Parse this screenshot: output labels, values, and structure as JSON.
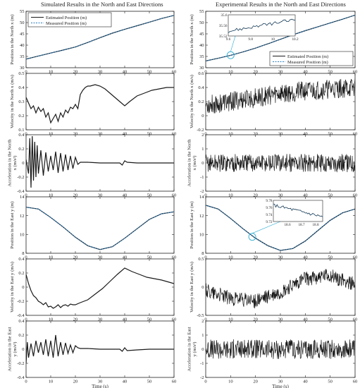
{
  "figure": {
    "left_title": "Simulated Results in the North and East Directions",
    "right_title": "Experimental Results in the North and East Directions",
    "xlabel": "Time (s)",
    "xlim": [
      0,
      60
    ],
    "xticks": [
      0,
      10,
      20,
      30,
      40,
      50,
      60
    ],
    "colors": {
      "estimated": "#1a1a1a",
      "measured": "#2a7fc0",
      "zoom_circle": "#2aaad0",
      "axes": "#222222"
    }
  },
  "chart_data": [
    {
      "id": "sim-north-position",
      "type": "line",
      "ylabel": "Position in the North x (m)",
      "ylim": [
        30,
        55
      ],
      "yticks": [
        30,
        35,
        40,
        45,
        50,
        55
      ],
      "legend": {
        "entries": [
          "Estimated Position (m)",
          "Measured Position (m)"
        ],
        "placement": "top-left"
      },
      "series": [
        {
          "name": "Estimated Position (m)",
          "style": "solid",
          "x": [
            0,
            5,
            10,
            15,
            20,
            25,
            30,
            35,
            40,
            45,
            50,
            55,
            60
          ],
          "y": [
            33.8,
            35.2,
            36.5,
            37.8,
            39.2,
            41.2,
            43.3,
            45.3,
            47.0,
            48.6,
            50.2,
            51.8,
            53.2
          ]
        },
        {
          "name": "Measured Position (m)",
          "style": "dotted",
          "x": [
            0,
            5,
            10,
            15,
            20,
            25,
            30,
            35,
            40,
            45,
            50,
            55,
            60
          ],
          "y": [
            33.8,
            35.2,
            36.5,
            37.8,
            39.2,
            41.2,
            43.3,
            45.3,
            47.0,
            48.6,
            50.2,
            51.8,
            53.2
          ]
        }
      ]
    },
    {
      "id": "sim-north-velocity",
      "type": "line",
      "ylabel": "Velocity in the North x (m/s)",
      "ylim": [
        0.1,
        0.5
      ],
      "yticks": [
        0.1,
        0.2,
        0.3,
        0.4,
        0.5
      ],
      "series": [
        {
          "name": "Estimated",
          "style": "solid",
          "x": [
            0,
            1,
            2,
            3,
            4,
            5,
            6,
            7,
            8,
            9,
            10,
            11,
            12,
            13,
            14,
            15,
            16,
            17,
            18,
            19,
            20,
            21,
            22,
            23,
            24,
            25,
            26,
            28,
            30,
            32,
            34,
            36,
            38,
            40,
            42,
            45,
            48,
            51,
            54,
            57,
            60
          ],
          "y": [
            0.33,
            0.29,
            0.25,
            0.27,
            0.22,
            0.26,
            0.23,
            0.25,
            0.19,
            0.22,
            0.15,
            0.18,
            0.21,
            0.16,
            0.22,
            0.19,
            0.24,
            0.22,
            0.26,
            0.25,
            0.28,
            0.25,
            0.35,
            0.38,
            0.4,
            0.41,
            0.41,
            0.42,
            0.41,
            0.39,
            0.36,
            0.33,
            0.3,
            0.27,
            0.3,
            0.34,
            0.36,
            0.38,
            0.39,
            0.4,
            0.4
          ]
        }
      ]
    },
    {
      "id": "sim-north-acceleration",
      "type": "line",
      "ylabel": "Acceleration in the North x (m/s²)",
      "ylim": [
        -0.4,
        0.4
      ],
      "yticks": [
        -0.4,
        -0.2,
        0,
        0.2,
        0.4
      ],
      "series": [
        {
          "name": "Estimated",
          "style": "solid",
          "x": [
            0,
            1,
            1.5,
            2,
            2.5,
            3,
            3.5,
            4,
            4.5,
            5,
            6,
            7,
            8,
            9,
            10,
            11,
            12,
            13,
            14,
            15,
            16,
            17,
            18,
            19,
            20,
            21,
            22,
            25,
            30,
            35,
            38,
            39,
            40,
            41,
            45,
            50,
            55,
            60
          ],
          "y": [
            0.05,
            -0.15,
            0.35,
            -0.35,
            0.38,
            -0.25,
            0.3,
            -0.2,
            0.25,
            -0.15,
            0.18,
            -0.18,
            0.15,
            -0.12,
            0.1,
            -0.1,
            0.16,
            -0.14,
            0.14,
            -0.12,
            0.12,
            -0.1,
            0.1,
            -0.08,
            0.08,
            -0.02,
            0.01,
            0.01,
            0.0,
            0.0,
            0.0,
            -0.03,
            0.03,
            0.01,
            0.0,
            0.0,
            0.0,
            0.0
          ]
        }
      ]
    },
    {
      "id": "sim-east-position",
      "type": "line",
      "ylabel": "Position in the East y (m)",
      "ylim": [
        8,
        14
      ],
      "yticks": [
        8,
        10,
        12,
        14
      ],
      "series": [
        {
          "name": "Estimated",
          "style": "solid",
          "x": [
            0,
            5,
            10,
            15,
            20,
            25,
            30,
            35,
            40,
            45,
            50,
            55,
            60
          ],
          "y": [
            12.9,
            12.7,
            11.8,
            10.8,
            9.7,
            8.8,
            8.4,
            8.7,
            9.6,
            10.6,
            11.6,
            12.2,
            12.4
          ]
        },
        {
          "name": "Measured",
          "style": "dotted",
          "x": [
            0,
            5,
            10,
            15,
            20,
            25,
            30,
            35,
            40,
            45,
            50,
            55,
            60
          ],
          "y": [
            12.9,
            12.7,
            11.8,
            10.8,
            9.7,
            8.8,
            8.4,
            8.7,
            9.6,
            10.6,
            11.6,
            12.2,
            12.4
          ]
        }
      ]
    },
    {
      "id": "sim-east-velocity",
      "type": "line",
      "ylabel": "Velocity in the East y (m/s)",
      "ylim": [
        -0.4,
        0.4
      ],
      "yticks": [
        -0.4,
        -0.2,
        0,
        0.2,
        0.4
      ],
      "series": [
        {
          "name": "Estimated",
          "style": "solid",
          "x": [
            0,
            1,
            2,
            3,
            4,
            5,
            6,
            7,
            8,
            9,
            10,
            11,
            12,
            13,
            14,
            15,
            16,
            17,
            18,
            19,
            20,
            22,
            25,
            28,
            31,
            34,
            37,
            40,
            43,
            46,
            49,
            52,
            55,
            58,
            60
          ],
          "y": [
            0.18,
            0.05,
            -0.05,
            -0.12,
            -0.15,
            -0.2,
            -0.22,
            -0.25,
            -0.22,
            -0.28,
            -0.27,
            -0.3,
            -0.28,
            -0.25,
            -0.29,
            -0.26,
            -0.25,
            -0.27,
            -0.24,
            -0.25,
            -0.25,
            -0.22,
            -0.18,
            -0.1,
            -0.02,
            0.08,
            0.18,
            0.27,
            0.22,
            0.18,
            0.14,
            0.12,
            0.1,
            0.07,
            0.05
          ]
        }
      ]
    },
    {
      "id": "sim-east-acceleration",
      "type": "line",
      "ylabel": "Acceleration in the East y (m/s²)",
      "ylim": [
        -0.4,
        0.4
      ],
      "yticks": [
        -0.4,
        -0.2,
        0,
        0.2,
        0.4
      ],
      "series": [
        {
          "name": "Estimated",
          "style": "solid",
          "x": [
            0,
            0.5,
            1,
            2,
            3,
            4,
            5,
            6,
            7,
            8,
            9,
            10,
            11,
            12,
            13,
            14,
            15,
            16,
            17,
            18,
            19,
            20,
            21,
            22,
            25,
            30,
            35,
            38,
            39,
            40,
            41,
            45,
            50,
            55,
            60
          ],
          "y": [
            -0.2,
            0.1,
            -0.12,
            0.08,
            -0.1,
            0.12,
            -0.05,
            0.1,
            -0.08,
            0.14,
            -0.1,
            0.12,
            -0.12,
            0.2,
            -0.1,
            0.1,
            -0.08,
            0.09,
            -0.06,
            0.06,
            -0.05,
            0.05,
            0.02,
            0.01,
            0.01,
            0.0,
            0.0,
            0.0,
            -0.03,
            0.02,
            -0.02,
            -0.01,
            0.0,
            0.0,
            0.0
          ]
        }
      ]
    },
    {
      "id": "exp-north-position",
      "type": "line",
      "ylabel": "Position in the North x (m)",
      "ylim": [
        30,
        55
      ],
      "yticks": [
        30,
        35,
        40,
        45,
        50,
        55
      ],
      "legend": {
        "entries": [
          "Estimated Position (m)",
          "Measured Position (m)"
        ],
        "placement": "bottom-right"
      },
      "zoom_inset": {
        "xlim": [
          9.6,
          10.2
        ],
        "ylim": [
          35.52,
          35.6
        ],
        "xticks": [
          9.6,
          9.8,
          10,
          10.2
        ],
        "yticks": [
          35.52,
          35.56,
          35.6
        ],
        "target_x": 10,
        "target_y": 35.56,
        "placement": "top-left"
      },
      "series": [
        {
          "name": "Estimated Position (m)",
          "style": "solid",
          "x": [
            0,
            5,
            10,
            15,
            20,
            25,
            30,
            35,
            40,
            45,
            50,
            55,
            60
          ],
          "y": [
            33.0,
            34.2,
            35.5,
            37.0,
            38.7,
            40.6,
            42.6,
            44.6,
            46.4,
            48.1,
            49.8,
            51.5,
            53.3
          ]
        },
        {
          "name": "Measured Position (m)",
          "style": "dotted",
          "x": [
            0,
            5,
            10,
            15,
            20,
            25,
            30,
            35,
            40,
            45,
            50,
            55,
            60
          ],
          "y": [
            33.0,
            34.2,
            35.5,
            37.0,
            38.7,
            40.6,
            42.6,
            44.6,
            46.4,
            48.1,
            49.8,
            51.5,
            53.3
          ]
        }
      ]
    },
    {
      "id": "exp-north-velocity",
      "type": "line",
      "ylabel": "Velocity in the North x (m/s)",
      "ylim": [
        -0.2,
        0.6
      ],
      "yticks": [
        -0.2,
        0,
        0.2,
        0.4,
        0.6
      ],
      "noise": {
        "trend_x": [
          0,
          10,
          20,
          30,
          40,
          50,
          60
        ],
        "trend_y": [
          0.15,
          0.2,
          0.25,
          0.32,
          0.35,
          0.38,
          0.4
        ],
        "amplitude": 0.14
      }
    },
    {
      "id": "exp-north-acceleration",
      "type": "line",
      "ylabel": "Acceleration in the North x (m/s²)",
      "ylim": [
        -2,
        2
      ],
      "yticks": [
        -2,
        -1,
        0,
        1,
        2
      ],
      "noise": {
        "trend_x": [
          0,
          60
        ],
        "trend_y": [
          0,
          0
        ],
        "amplitude": 0.65
      }
    },
    {
      "id": "exp-east-position",
      "type": "line",
      "ylabel": "Position in the East y (m)",
      "ylim": [
        8,
        14
      ],
      "yticks": [
        8,
        10,
        12,
        14
      ],
      "zoom_inset": {
        "xlim": [
          18.5,
          18.85
        ],
        "ylim": [
          9.72,
          9.78
        ],
        "xticks": [
          18.6,
          18.7,
          18.8
        ],
        "yticks": [
          9.72,
          9.74,
          9.76,
          9.78
        ],
        "target_x": 18.7,
        "target_y": 9.75,
        "placement": "top-center"
      },
      "series": [
        {
          "name": "Estimated",
          "style": "solid",
          "x": [
            0,
            5,
            10,
            15,
            20,
            25,
            30,
            35,
            40,
            45,
            50,
            55,
            60
          ],
          "y": [
            13.1,
            12.7,
            11.7,
            10.6,
            9.6,
            8.8,
            8.3,
            8.5,
            9.3,
            10.4,
            11.5,
            12.3,
            12.7
          ]
        },
        {
          "name": "Measured",
          "style": "dotted",
          "x": [
            0,
            5,
            10,
            15,
            20,
            25,
            30,
            35,
            40,
            45,
            50,
            55,
            60
          ],
          "y": [
            13.1,
            12.7,
            11.7,
            10.6,
            9.6,
            8.8,
            8.3,
            8.5,
            9.3,
            10.4,
            11.5,
            12.3,
            12.7
          ]
        }
      ]
    },
    {
      "id": "exp-east-velocity",
      "type": "line",
      "ylabel": "Velocity in the East y (m/s)",
      "ylim": [
        -0.5,
        0.5
      ],
      "yticks": [
        -0.5,
        0,
        0.5
      ],
      "noise": {
        "trend_x": [
          0,
          10,
          20,
          30,
          40,
          50,
          60
        ],
        "trend_y": [
          -0.05,
          -0.2,
          -0.25,
          -0.1,
          0.15,
          0.2,
          0.05
        ],
        "amplitude": 0.13
      }
    },
    {
      "id": "exp-east-acceleration",
      "type": "line",
      "ylabel": "Acceleration in the East y (m/s²)",
      "ylim": [
        -2,
        2
      ],
      "yticks": [
        -2,
        -1,
        0,
        1,
        2
      ],
      "noise": {
        "trend_x": [
          0,
          60
        ],
        "trend_y": [
          0,
          0
        ],
        "amplitude": 0.7
      }
    }
  ]
}
